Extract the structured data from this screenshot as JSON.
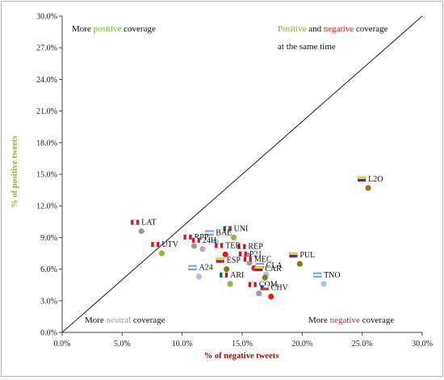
{
  "chart_data": {
    "type": "scatter",
    "xlabel": "% of negative tweets",
    "ylabel": "% of positive tweets",
    "xlim": [
      0,
      30
    ],
    "ylim": [
      0,
      30
    ],
    "x_ticks": [
      "0.0%",
      "5.0%",
      "10.0%",
      "15.0%",
      "20.0%",
      "25.0%",
      "30.0%"
    ],
    "y_ticks": [
      "0.0%",
      "3.0%",
      "6.0%",
      "9.0%",
      "12.0%",
      "15.0%",
      "18.0%",
      "21.0%",
      "24.0%",
      "27.0%",
      "30.0%"
    ],
    "diagonal": true,
    "grid": false,
    "colors": {
      "axis_x_title": "#c00000",
      "axis_y_title": "#8db33a",
      "positive": "#7ab32f",
      "negative": "#e0202a",
      "neutral": "#999999"
    },
    "annotations": {
      "top_left": [
        "More ",
        "positive",
        " coverage"
      ],
      "top_right_1": [
        "Positive",
        " and ",
        "negative",
        " coverage"
      ],
      "top_right_2": "at the same time",
      "bottom_left": [
        "More ",
        "neutral",
        " coverage"
      ],
      "bottom_right": [
        "More ",
        "negative",
        " coverage"
      ]
    },
    "points": [
      {
        "label": "L2O",
        "x": 25.5,
        "y": 13.7,
        "color": "#7f7f1a",
        "flag": "colombia"
      },
      {
        "label": "LAT",
        "x": 6.6,
        "y": 9.6,
        "color": "#9b9b9b",
        "flag": "peru"
      },
      {
        "label": "UNI",
        "x": 14.3,
        "y": 9.0,
        "color": "#8fb838",
        "flag": "mexico"
      },
      {
        "label": "BAE",
        "x": 12.8,
        "y": 8.6,
        "color": "#a6c3e6",
        "flag": "argentina"
      },
      {
        "label": "RPP",
        "x": 11.0,
        "y": 8.2,
        "color": "#9b9b9b",
        "flag": "peru"
      },
      {
        "label": "24H",
        "x": 11.7,
        "y": 7.9,
        "color": "#c8a9a9",
        "flag": "peru"
      },
      {
        "label": "REP",
        "x": 15.5,
        "y": 7.3,
        "color": "#9b9b9b",
        "flag": "peru"
      },
      {
        "label": "UTV",
        "x": 8.3,
        "y": 7.5,
        "color": "#8fb838",
        "flag": "peru"
      },
      {
        "label": "PUL",
        "x": 19.8,
        "y": 6.5,
        "color": "#7f7f1a",
        "flag": "colombia"
      },
      {
        "label": "TER",
        "x": 13.6,
        "y": 7.4,
        "color": "#e02020",
        "flag": "peru"
      },
      {
        "label": "P21",
        "x": 15.6,
        "y": 6.6,
        "color": "#9b9b9b",
        "flag": "peru"
      },
      {
        "label": "A24",
        "x": 11.4,
        "y": 5.3,
        "color": "#a6c3e6",
        "flag": "argentina"
      },
      {
        "label": "ESP",
        "x": 13.7,
        "y": 6.0,
        "color": "#7f7f1a",
        "flag": "colombia"
      },
      {
        "label": "MEC",
        "x": 16.0,
        "y": 6.1,
        "color": "#e02020",
        "flag": "peru"
      },
      {
        "label": "CLA",
        "x": 17.0,
        "y": 5.5,
        "color": "#a6c3e6",
        "flag": "argentina"
      },
      {
        "label": "CAR",
        "x": 16.9,
        "y": 5.2,
        "color": "#7f7f1a",
        "flag": "colombia"
      },
      {
        "label": "TNO",
        "x": 21.8,
        "y": 4.6,
        "color": "#a6c3e6",
        "flag": "argentina"
      },
      {
        "label": "ARI",
        "x": 14.0,
        "y": 4.6,
        "color": "#8fb838",
        "flag": "mexico"
      },
      {
        "label": "COM",
        "x": 16.4,
        "y": 3.7,
        "color": "#9b9b9b",
        "flag": "peru"
      },
      {
        "label": "CHV",
        "x": 17.4,
        "y": 3.4,
        "color": "#e02020",
        "flag": "chile"
      }
    ]
  }
}
